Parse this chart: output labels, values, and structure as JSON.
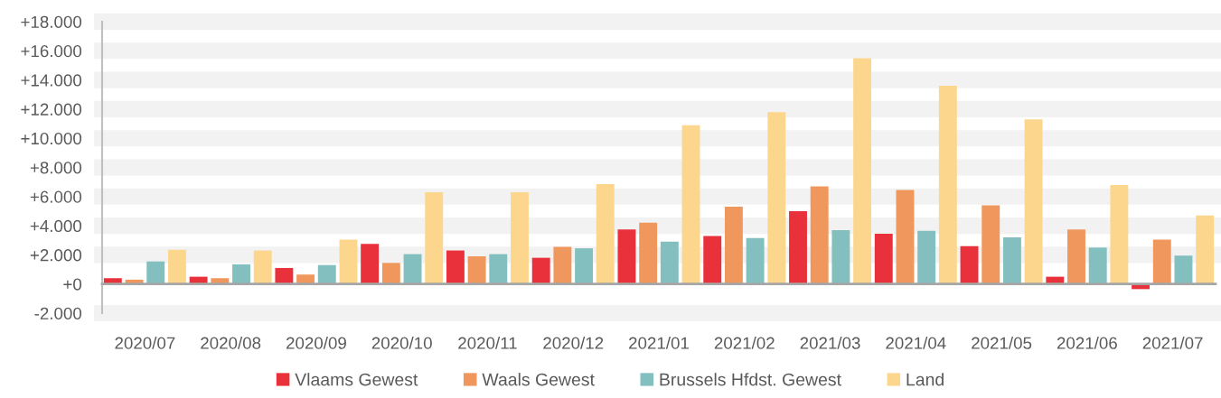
{
  "chart_data": {
    "type": "bar",
    "categories": [
      "2020/07",
      "2020/08",
      "2020/09",
      "2020/10",
      "2020/11",
      "2020/12",
      "2021/01",
      "2021/02",
      "2021/03",
      "2021/04",
      "2021/05",
      "2021/06",
      "2021/07"
    ],
    "series": [
      {
        "name": "Vlaams Gewest",
        "color": "#e8313a",
        "values": [
          400,
          500,
          1100,
          2750,
          2300,
          1800,
          3750,
          3300,
          5000,
          3450,
          2600,
          500,
          -350
        ]
      },
      {
        "name": "Waals Gewest",
        "color": "#f0975e",
        "values": [
          300,
          400,
          650,
          1450,
          1900,
          2550,
          4200,
          5300,
          6700,
          6450,
          5400,
          3750,
          3050
        ]
      },
      {
        "name": "Brussels Hfdst. Gewest",
        "color": "#82bfbe",
        "values": [
          1550,
          1350,
          1300,
          2050,
          2050,
          2450,
          2900,
          3150,
          3700,
          3650,
          3200,
          2500,
          1950
        ]
      },
      {
        "name": "Land",
        "color": "#fdd68e",
        "values": [
          2350,
          2300,
          3050,
          6300,
          6300,
          6850,
          10900,
          11800,
          15500,
          13600,
          11300,
          6800,
          4700
        ]
      }
    ],
    "ylim": [
      -2000,
      18000
    ],
    "yticks": [
      {
        "value": -2000,
        "label": "-2.000"
      },
      {
        "value": 0,
        "label": "+0"
      },
      {
        "value": 2000,
        "label": "+2.000"
      },
      {
        "value": 4000,
        "label": "+4.000"
      },
      {
        "value": 6000,
        "label": "+6.000"
      },
      {
        "value": 8000,
        "label": "+8.000"
      },
      {
        "value": 10000,
        "label": "+10.000"
      },
      {
        "value": 12000,
        "label": "+12.000"
      },
      {
        "value": 14000,
        "label": "+14.000"
      },
      {
        "value": 16000,
        "label": "+16.000"
      },
      {
        "value": 18000,
        "label": "+18.000"
      }
    ],
    "grid": "y",
    "legend": "bottom"
  }
}
